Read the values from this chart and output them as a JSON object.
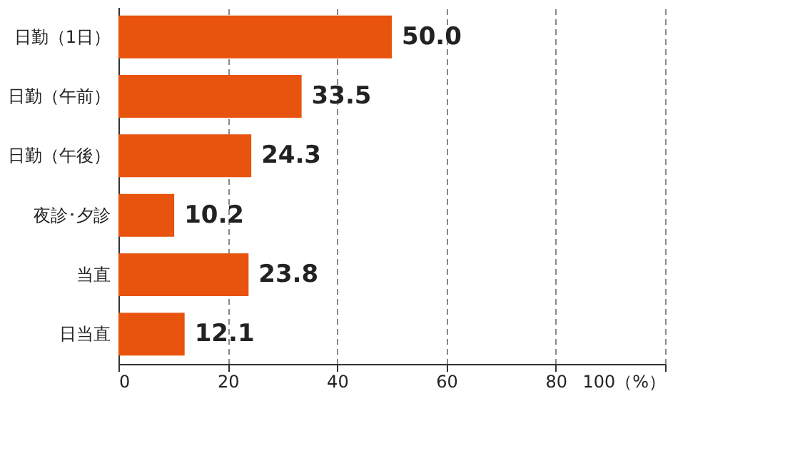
{
  "chart_data": {
    "type": "bar",
    "orientation": "horizontal",
    "categories": [
      "日勤（1日）",
      "日勤（午前）",
      "日勤（午後）",
      "夜診･夕診",
      "当直",
      "日当直"
    ],
    "values": [
      50.0,
      33.5,
      24.3,
      10.2,
      23.8,
      12.1
    ],
    "color": "#e8530e",
    "xlim": [
      0,
      100
    ],
    "xticks": [
      0,
      20,
      40,
      60,
      80,
      {
        "value": 100,
        "label": "100（%）"
      }
    ],
    "value_labels": [
      "50.0",
      "33.5",
      "24.3",
      "10.2",
      "23.8",
      "12.1"
    ],
    "grid": "x",
    "line_style": "dashed"
  }
}
